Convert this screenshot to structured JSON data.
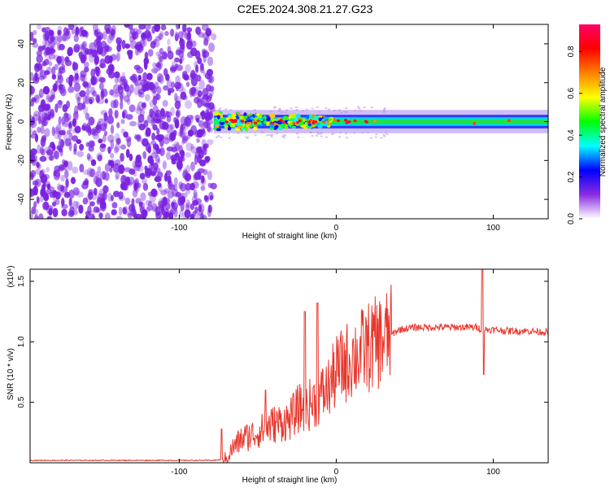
{
  "title": "C2E5.2024.308.21.27.G23",
  "chart_data": [
    {
      "type": "heatmap",
      "xlabel": "Height of straight line (km)",
      "ylabel": "Frequency (Hz)",
      "xlim": [
        -195,
        135
      ],
      "ylim": [
        -50,
        50
      ],
      "xticks": [
        -100,
        0,
        100
      ],
      "xtick_labels": [
        "-100",
        "0",
        "100"
      ],
      "yticks": [
        -40,
        -20,
        0,
        20,
        40
      ],
      "ytick_labels": [
        "-40",
        "-20",
        "0",
        "20",
        "40"
      ],
      "colorbar": {
        "label": "Normalized spectral amplitude",
        "range": [
          0,
          0.93
        ],
        "ticks": [
          0,
          0.2,
          0.4,
          0.6,
          0.8
        ],
        "tick_labels": [
          "0.0",
          "0.2",
          "0.4",
          "0.6",
          "0.8"
        ],
        "colors": [
          "#ffffff",
          "#8a2be2",
          "#0000ff",
          "#00ffff",
          "#00ff00",
          "#ffff00",
          "#ff8000",
          "#ff0000",
          "#ff0066"
        ]
      },
      "regions": [
        {
          "name": "noise",
          "x": [
            -195,
            -78
          ],
          "y": [
            -50,
            50
          ],
          "amplitude": [
            0.0,
            0.12
          ]
        },
        {
          "name": "signal-band",
          "x": [
            -78,
            135
          ],
          "y_center": 0,
          "y_halfwidth": [
            5,
            3
          ],
          "amplitude": [
            0.3,
            0.93
          ]
        }
      ],
      "grid": false
    },
    {
      "type": "line",
      "xlabel": "Height of straight line (km)",
      "ylabel": "SNR (10 * v/v)",
      "ylabel_multiplier": "(x10⁴)",
      "xlim": [
        -195,
        135
      ],
      "ylim": [
        0,
        1.6
      ],
      "xticks": [
        -100,
        0,
        100
      ],
      "xtick_labels": [
        "-100",
        "0",
        "100"
      ],
      "yticks": [
        0.5,
        1.0,
        1.5
      ],
      "ytick_labels": [
        "0.5",
        "1.0",
        "1.5"
      ],
      "series": [
        {
          "color": "#e8362c",
          "x": [
            -195,
            -170,
            -140,
            -110,
            -90,
            -78,
            -70,
            -66,
            -60,
            -50,
            -40,
            -30,
            -24,
            -20,
            -15,
            -10,
            -5,
            0,
            10,
            20,
            30,
            40,
            50,
            60,
            70,
            80,
            90,
            93,
            95,
            100,
            110,
            120,
            135
          ],
          "y": [
            0.02,
            0.02,
            0.02,
            0.02,
            0.02,
            0.02,
            0.03,
            0.12,
            0.2,
            0.25,
            0.32,
            0.35,
            0.45,
            0.45,
            0.5,
            0.55,
            0.62,
            0.75,
            0.87,
            0.95,
            1.02,
            1.1,
            1.12,
            1.12,
            1.12,
            1.12,
            1.12,
            1.1,
            1.1,
            1.1,
            1.09,
            1.09,
            1.08
          ]
        }
      ],
      "spikes": [
        {
          "x": -73,
          "y": 0.28
        },
        {
          "x": -45,
          "y": 0.6
        },
        {
          "x": -20,
          "y": 1.25
        },
        {
          "x": -12,
          "y": 1.32
        },
        {
          "x": 93,
          "y": 1.6
        },
        {
          "x": 94,
          "y": 0.73
        }
      ],
      "grid": false
    }
  ]
}
